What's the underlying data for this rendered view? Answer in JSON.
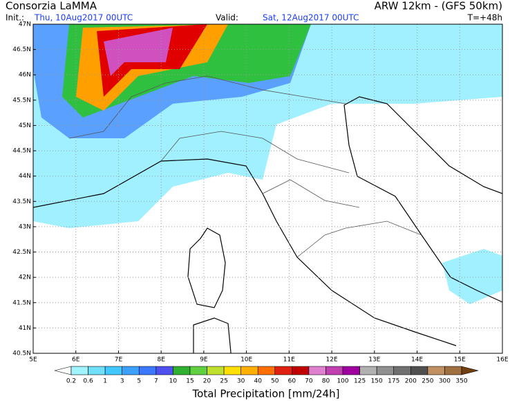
{
  "header": {
    "source": "Consorzia LaMMA",
    "model": "ARW 12km - (GFS 50km)",
    "init_label": "Init.:",
    "init_date": "Thu, 10Aug2017 00UTC",
    "valid_label": "Valid:",
    "valid_date": "Sat, 12Aug2017 00UTC",
    "lead_time": "T=+48h"
  },
  "map": {
    "lat_labels": [
      "47N",
      "46.5N",
      "46N",
      "45.5N",
      "45N",
      "44.5N",
      "44N",
      "43.5N",
      "43N",
      "42.5N",
      "42N",
      "41.5N",
      "41N",
      "40.5N"
    ],
    "lon_labels": [
      "5E",
      "6E",
      "7E",
      "8E",
      "9E",
      "10E",
      "11E",
      "12E",
      "13E",
      "14E",
      "15E",
      "16E"
    ]
  },
  "colorbar": {
    "title": "Total Precipitation [mm/24h]",
    "labels": [
      "0.2",
      "0.6",
      "1",
      "3",
      "5",
      "7",
      "10",
      "15",
      "20",
      "25",
      "30",
      "40",
      "50",
      "60",
      "70",
      "80",
      "100",
      "125",
      "150",
      "175",
      "200",
      "250",
      "300",
      "350"
    ],
    "colors": [
      "#ffffff",
      "#9ff4ff",
      "#70e0f8",
      "#40c8ff",
      "#3ca0ff",
      "#3c78ff",
      "#5050f0",
      "#30b030",
      "#60d040",
      "#c0e030",
      "#ffe000",
      "#ffb000",
      "#ff7000",
      "#e02010",
      "#c00000",
      "#e080d0",
      "#c040b0",
      "#a000a0",
      "#b0b0b0",
      "#909090",
      "#707070",
      "#505050",
      "#c09060",
      "#a07040",
      "#704010"
    ]
  }
}
